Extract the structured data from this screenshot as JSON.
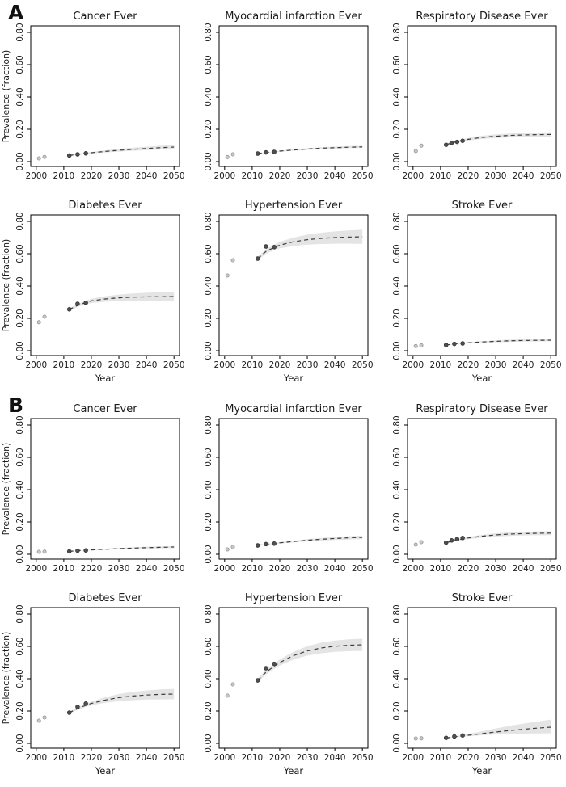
{
  "figure": {
    "panels": [
      {
        "label": "A"
      },
      {
        "label": "B"
      }
    ],
    "axis": {
      "xlabel": "Year",
      "ylabel": "Prevalence (fraction)",
      "xticks": [
        2000,
        2010,
        2020,
        2030,
        2040,
        2050
      ],
      "ytick_labels": [
        "0.00",
        "0.20",
        "0.40",
        "0.60",
        "0.80"
      ],
      "ytick_values": [
        0.0,
        0.2,
        0.4,
        0.6,
        0.8
      ],
      "xlim": [
        1998,
        2052
      ],
      "ylim": [
        -0.03,
        0.84
      ],
      "grid": false,
      "legend": "none"
    },
    "colors": {
      "background": "#ffffff",
      "axis_line": "#000000",
      "text": "#1a1a1a",
      "confidence_band": "#e4e4e4",
      "projection_line": "#3c3c3c",
      "observed_dark_fill": "#4f4f4f",
      "observed_dark_stroke": "#2e2e2e",
      "observed_gray_fill": "#c8c8c8",
      "observed_gray_stroke": "#969696"
    }
  },
  "chart_data": [
    {
      "type": "line",
      "panel": "A",
      "title": "Cancer Ever",
      "observed_gray": [
        [
          2001,
          0.02
        ],
        [
          2003,
          0.029
        ]
      ],
      "observed_dark": [
        [
          2012,
          0.038
        ],
        [
          2015,
          0.045
        ],
        [
          2018,
          0.051
        ]
      ],
      "projection_x": [
        2012,
        2015,
        2018,
        2020,
        2025,
        2030,
        2035,
        2040,
        2045,
        2050
      ],
      "projection_y": [
        0.038,
        0.045,
        0.051,
        0.055,
        0.063,
        0.07,
        0.076,
        0.081,
        0.086,
        0.09
      ],
      "band_lower": [
        0.035,
        0.042,
        0.047,
        0.05,
        0.056,
        0.062,
        0.067,
        0.071,
        0.074,
        0.077
      ],
      "band_upper": [
        0.041,
        0.049,
        0.055,
        0.06,
        0.07,
        0.079,
        0.086,
        0.092,
        0.098,
        0.103
      ]
    },
    {
      "type": "line",
      "panel": "A",
      "title": "Myocardial infarction Ever",
      "observed_gray": [
        [
          2001,
          0.028
        ],
        [
          2003,
          0.045
        ]
      ],
      "observed_dark": [
        [
          2012,
          0.05
        ],
        [
          2015,
          0.057
        ],
        [
          2018,
          0.06
        ]
      ],
      "projection_x": [
        2012,
        2015,
        2018,
        2020,
        2025,
        2030,
        2035,
        2040,
        2045,
        2050
      ],
      "projection_y": [
        0.05,
        0.056,
        0.061,
        0.065,
        0.072,
        0.078,
        0.083,
        0.086,
        0.089,
        0.091
      ],
      "band_lower": [
        0.048,
        0.054,
        0.058,
        0.061,
        0.067,
        0.072,
        0.077,
        0.08,
        0.083,
        0.085
      ],
      "band_upper": [
        0.052,
        0.059,
        0.064,
        0.068,
        0.076,
        0.083,
        0.089,
        0.093,
        0.096,
        0.098
      ]
    },
    {
      "type": "line",
      "panel": "A",
      "title": "Respiratory Disease Ever",
      "observed_gray": [
        [
          2001,
          0.065
        ],
        [
          2003,
          0.099
        ]
      ],
      "observed_dark": [
        [
          2012,
          0.104
        ],
        [
          2014,
          0.116
        ],
        [
          2016,
          0.122
        ],
        [
          2018,
          0.129
        ]
      ],
      "projection_x": [
        2012,
        2015,
        2018,
        2020,
        2025,
        2030,
        2035,
        2040,
        2045,
        2050
      ],
      "projection_y": [
        0.105,
        0.12,
        0.131,
        0.138,
        0.15,
        0.157,
        0.162,
        0.165,
        0.167,
        0.168
      ],
      "band_lower": [
        0.1,
        0.114,
        0.124,
        0.13,
        0.14,
        0.146,
        0.15,
        0.153,
        0.154,
        0.155
      ],
      "band_upper": [
        0.11,
        0.126,
        0.138,
        0.146,
        0.16,
        0.168,
        0.174,
        0.178,
        0.18,
        0.182
      ]
    },
    {
      "type": "line",
      "panel": "A",
      "title": "Diabetes Ever",
      "observed_gray": [
        [
          2001,
          0.176
        ],
        [
          2003,
          0.21
        ]
      ],
      "observed_dark": [
        [
          2012,
          0.256
        ],
        [
          2015,
          0.29
        ],
        [
          2018,
          0.296
        ]
      ],
      "projection_x": [
        2012,
        2015,
        2018,
        2020,
        2025,
        2030,
        2035,
        2040,
        2045,
        2050
      ],
      "projection_y": [
        0.255,
        0.28,
        0.298,
        0.308,
        0.32,
        0.327,
        0.331,
        0.333,
        0.334,
        0.335
      ],
      "band_lower": [
        0.248,
        0.271,
        0.287,
        0.295,
        0.303,
        0.307,
        0.308,
        0.308,
        0.307,
        0.306
      ],
      "band_upper": [
        0.262,
        0.289,
        0.309,
        0.321,
        0.337,
        0.347,
        0.354,
        0.358,
        0.361,
        0.364
      ]
    },
    {
      "type": "line",
      "panel": "A",
      "title": "Hypertension Ever",
      "observed_gray": [
        [
          2001,
          0.465
        ],
        [
          2003,
          0.56
        ]
      ],
      "observed_dark": [
        [
          2012,
          0.57
        ],
        [
          2015,
          0.645
        ],
        [
          2018,
          0.641
        ]
      ],
      "projection_x": [
        2012,
        2015,
        2018,
        2020,
        2025,
        2030,
        2035,
        2040,
        2045,
        2050
      ],
      "projection_y": [
        0.57,
        0.614,
        0.639,
        0.653,
        0.674,
        0.687,
        0.695,
        0.7,
        0.703,
        0.705
      ],
      "band_lower": [
        0.558,
        0.6,
        0.622,
        0.633,
        0.648,
        0.656,
        0.66,
        0.662,
        0.662,
        0.661
      ],
      "band_upper": [
        0.582,
        0.628,
        0.656,
        0.673,
        0.7,
        0.718,
        0.73,
        0.738,
        0.744,
        0.749
      ]
    },
    {
      "type": "line",
      "panel": "A",
      "title": "Stroke Ever",
      "observed_gray": [
        [
          2001,
          0.028
        ],
        [
          2003,
          0.033
        ]
      ],
      "observed_dark": [
        [
          2012,
          0.035
        ],
        [
          2015,
          0.042
        ],
        [
          2018,
          0.045
        ]
      ],
      "projection_x": [
        2012,
        2015,
        2018,
        2020,
        2025,
        2030,
        2035,
        2040,
        2045,
        2050
      ],
      "projection_y": [
        0.035,
        0.041,
        0.046,
        0.049,
        0.054,
        0.058,
        0.061,
        0.063,
        0.064,
        0.065
      ],
      "band_lower": [
        0.033,
        0.039,
        0.043,
        0.045,
        0.049,
        0.052,
        0.054,
        0.056,
        0.057,
        0.058
      ],
      "band_upper": [
        0.037,
        0.043,
        0.049,
        0.053,
        0.059,
        0.064,
        0.068,
        0.07,
        0.071,
        0.072
      ]
    },
    {
      "type": "line",
      "panel": "B",
      "title": "Cancer Ever",
      "observed_gray": [
        [
          2001,
          0.015
        ],
        [
          2003,
          0.016
        ]
      ],
      "observed_dark": [
        [
          2012,
          0.018
        ],
        [
          2015,
          0.022
        ],
        [
          2018,
          0.024
        ]
      ],
      "projection_x": [
        2012,
        2015,
        2018,
        2020,
        2025,
        2030,
        2035,
        2040,
        2045,
        2050
      ],
      "projection_y": [
        0.018,
        0.022,
        0.025,
        0.027,
        0.031,
        0.035,
        0.038,
        0.041,
        0.043,
        0.045
      ],
      "band_lower": [
        0.017,
        0.021,
        0.023,
        0.025,
        0.028,
        0.031,
        0.033,
        0.035,
        0.037,
        0.038
      ],
      "band_upper": [
        0.019,
        0.023,
        0.027,
        0.029,
        0.034,
        0.039,
        0.043,
        0.047,
        0.049,
        0.052
      ]
    },
    {
      "type": "line",
      "panel": "B",
      "title": "Myocardial infarction Ever",
      "observed_gray": [
        [
          2001,
          0.03
        ],
        [
          2003,
          0.045
        ]
      ],
      "observed_dark": [
        [
          2012,
          0.055
        ],
        [
          2015,
          0.063
        ],
        [
          2018,
          0.066
        ]
      ],
      "projection_x": [
        2012,
        2015,
        2018,
        2020,
        2025,
        2030,
        2035,
        2040,
        2045,
        2050
      ],
      "projection_y": [
        0.055,
        0.062,
        0.067,
        0.071,
        0.079,
        0.087,
        0.093,
        0.098,
        0.102,
        0.105
      ],
      "band_lower": [
        0.053,
        0.059,
        0.064,
        0.067,
        0.074,
        0.08,
        0.085,
        0.089,
        0.092,
        0.094
      ],
      "band_upper": [
        0.057,
        0.065,
        0.07,
        0.075,
        0.084,
        0.094,
        0.101,
        0.107,
        0.112,
        0.116
      ]
    },
    {
      "type": "line",
      "panel": "B",
      "title": "Respiratory Disease Ever",
      "observed_gray": [
        [
          2001,
          0.06
        ],
        [
          2003,
          0.075
        ]
      ],
      "observed_dark": [
        [
          2012,
          0.072
        ],
        [
          2014,
          0.086
        ],
        [
          2016,
          0.094
        ],
        [
          2018,
          0.101
        ]
      ],
      "projection_x": [
        2012,
        2015,
        2018,
        2020,
        2025,
        2030,
        2035,
        2040,
        2045,
        2050
      ],
      "projection_y": [
        0.072,
        0.085,
        0.095,
        0.101,
        0.112,
        0.12,
        0.125,
        0.128,
        0.13,
        0.131
      ],
      "band_lower": [
        0.068,
        0.08,
        0.089,
        0.094,
        0.104,
        0.11,
        0.114,
        0.117,
        0.118,
        0.119
      ],
      "band_upper": [
        0.076,
        0.09,
        0.101,
        0.108,
        0.12,
        0.13,
        0.136,
        0.139,
        0.142,
        0.143
      ]
    },
    {
      "type": "line",
      "panel": "B",
      "title": "Diabetes Ever",
      "observed_gray": [
        [
          2001,
          0.14
        ],
        [
          2003,
          0.16
        ]
      ],
      "observed_dark": [
        [
          2012,
          0.19
        ],
        [
          2015,
          0.226
        ],
        [
          2018,
          0.246
        ]
      ],
      "projection_x": [
        2012,
        2015,
        2018,
        2020,
        2025,
        2030,
        2035,
        2040,
        2045,
        2050
      ],
      "projection_y": [
        0.19,
        0.215,
        0.235,
        0.247,
        0.268,
        0.283,
        0.293,
        0.299,
        0.303,
        0.305
      ],
      "band_lower": [
        0.184,
        0.207,
        0.225,
        0.235,
        0.251,
        0.261,
        0.267,
        0.271,
        0.272,
        0.273
      ],
      "band_upper": [
        0.196,
        0.223,
        0.245,
        0.259,
        0.285,
        0.305,
        0.319,
        0.327,
        0.334,
        0.337
      ]
    },
    {
      "type": "line",
      "panel": "B",
      "title": "Hypertension Ever",
      "observed_gray": [
        [
          2001,
          0.295
        ],
        [
          2003,
          0.365
        ]
      ],
      "observed_dark": [
        [
          2012,
          0.39
        ],
        [
          2015,
          0.465
        ],
        [
          2018,
          0.492
        ]
      ],
      "projection_x": [
        2012,
        2015,
        2018,
        2020,
        2025,
        2030,
        2035,
        2040,
        2045,
        2050
      ],
      "projection_y": [
        0.39,
        0.44,
        0.478,
        0.5,
        0.543,
        0.572,
        0.59,
        0.601,
        0.607,
        0.61
      ],
      "band_lower": [
        0.378,
        0.426,
        0.461,
        0.481,
        0.519,
        0.543,
        0.557,
        0.566,
        0.57,
        0.572
      ],
      "band_upper": [
        0.402,
        0.454,
        0.495,
        0.519,
        0.567,
        0.601,
        0.623,
        0.636,
        0.644,
        0.648
      ]
    },
    {
      "type": "line",
      "panel": "B",
      "title": "Stroke Ever",
      "observed_gray": [
        [
          2001,
          0.03
        ],
        [
          2003,
          0.031
        ]
      ],
      "observed_dark": [
        [
          2012,
          0.034
        ],
        [
          2015,
          0.043
        ],
        [
          2018,
          0.049
        ]
      ],
      "projection_x": [
        2012,
        2015,
        2018,
        2020,
        2025,
        2030,
        2035,
        2040,
        2045,
        2050
      ],
      "projection_y": [
        0.033,
        0.04,
        0.046,
        0.05,
        0.06,
        0.07,
        0.079,
        0.087,
        0.094,
        0.1
      ],
      "band_lower": [
        0.031,
        0.036,
        0.041,
        0.044,
        0.05,
        0.055,
        0.058,
        0.06,
        0.061,
        0.062
      ],
      "band_upper": [
        0.035,
        0.044,
        0.052,
        0.058,
        0.074,
        0.092,
        0.108,
        0.122,
        0.135,
        0.147
      ]
    }
  ]
}
